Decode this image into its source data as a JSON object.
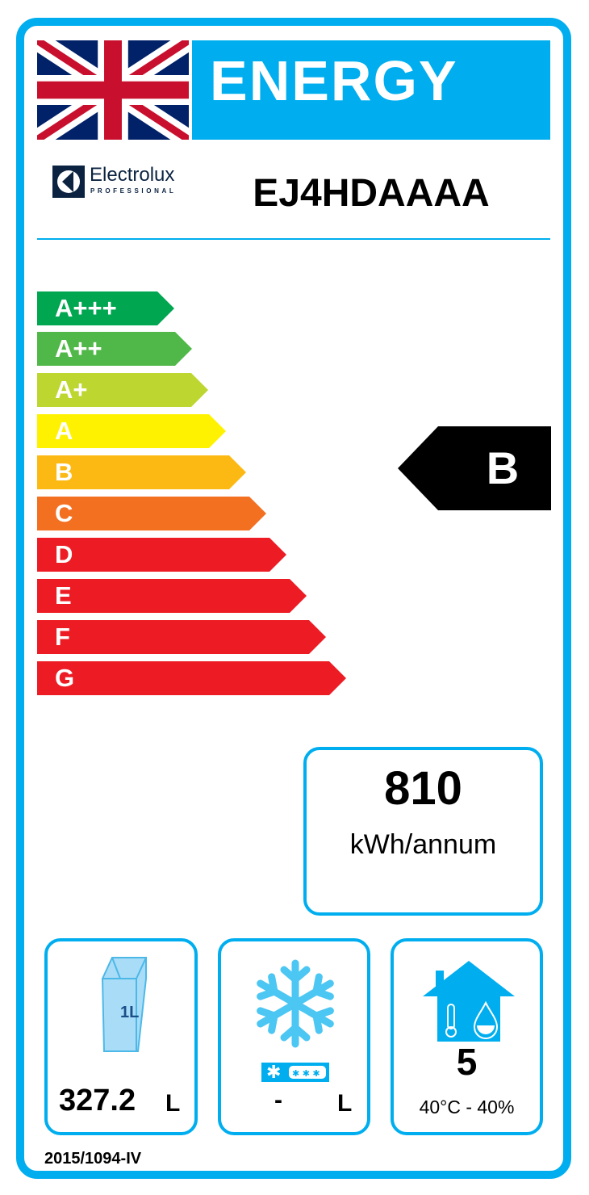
{
  "header": {
    "title": "ENERGY",
    "flag": "union-jack"
  },
  "brand": {
    "name": "Electrolux",
    "sub": "PROFESSIONAL"
  },
  "model": "EJ4HDAAAA",
  "scale": [
    {
      "label": "A+++",
      "color": "#00a650"
    },
    {
      "label": "A++",
      "color": "#50b848"
    },
    {
      "label": "A+",
      "color": "#bed630"
    },
    {
      "label": "A",
      "color": "#fff200"
    },
    {
      "label": "B",
      "color": "#fdb913"
    },
    {
      "label": "C",
      "color": "#f37021"
    },
    {
      "label": "D",
      "color": "#ed1c24"
    },
    {
      "label": "E",
      "color": "#ed1c24"
    },
    {
      "label": "F",
      "color": "#ed1c24"
    },
    {
      "label": "G",
      "color": "#ed1c24"
    }
  ],
  "rating": "B",
  "consumption": {
    "value": "810",
    "unit": "kWh/annum"
  },
  "storage": {
    "value": "327.2",
    "unit": "L",
    "icon_label": "1L"
  },
  "freezer": {
    "value": "-",
    "unit": "L"
  },
  "climate": {
    "class": "5",
    "conditions": "40°C - 40%"
  },
  "regulation": "2015/1094-IV",
  "colors": {
    "accent": "#00aeef",
    "rating": "#000000"
  }
}
